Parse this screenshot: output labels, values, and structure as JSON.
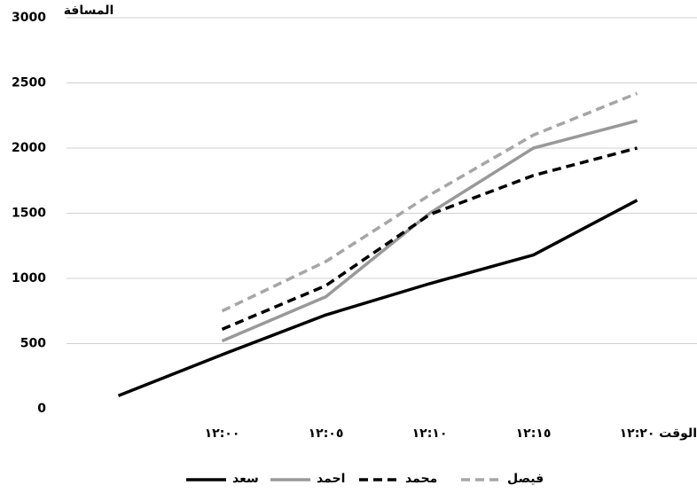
{
  "chart_data": {
    "type": "line",
    "y_label": "المسافة",
    "x_label": "الوقت",
    "categories": [
      null,
      "١٢:٠٠",
      "١٢:٠٥",
      "١٢:١٠",
      "١٢:١٥",
      "١٢:٢٠"
    ],
    "series": [
      {
        "name": "سعد",
        "color": "#000000",
        "style": "solid",
        "values": [
          100,
          415,
          720,
          960,
          1180,
          1600
        ]
      },
      {
        "name": "احمد",
        "color": "#999999",
        "style": "solid",
        "values": [
          null,
          520,
          860,
          1500,
          2000,
          2210
        ]
      },
      {
        "name": "محمد",
        "color": "#000000",
        "style": "dashed",
        "values": [
          null,
          610,
          945,
          1490,
          1790,
          2000
        ]
      },
      {
        "name": "فيصل",
        "color": "#a6a6a6",
        "style": "dashed",
        "values": [
          null,
          750,
          1130,
          1640,
          2100,
          2420
        ]
      }
    ],
    "ylim": [
      0,
      3000
    ],
    "yticks": [
      0,
      500,
      1000,
      1500,
      2000,
      2500,
      3000
    ],
    "grid": true,
    "legend": "bottom"
  }
}
